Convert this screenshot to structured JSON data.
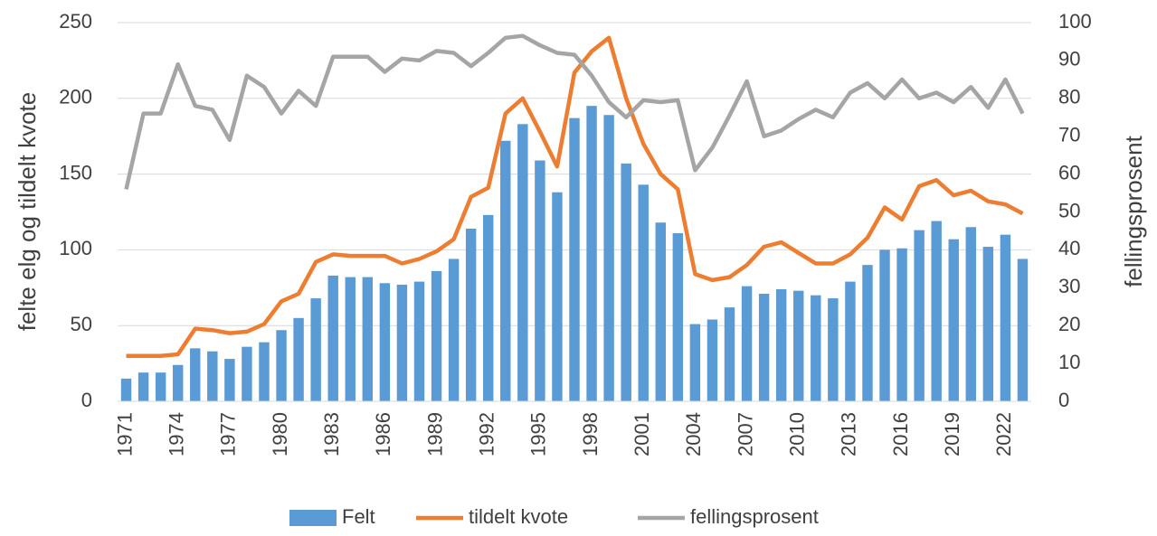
{
  "chart_data": {
    "type": "bar-line",
    "y_label": "felte elg og tildelt kvote",
    "y2_label": "fellingsprosent",
    "categories": [
      "1971",
      null,
      null,
      "1974",
      null,
      null,
      "1977",
      null,
      null,
      "1980",
      null,
      null,
      "1983",
      null,
      null,
      "1986",
      null,
      null,
      "1989",
      null,
      null,
      "1992",
      null,
      null,
      "1995",
      null,
      null,
      "1998",
      null,
      null,
      "2001",
      null,
      null,
      "2004",
      null,
      null,
      "2007",
      null,
      null,
      "2010",
      null,
      null,
      "2013",
      null,
      null,
      "2016",
      null,
      null,
      "2019",
      null,
      null,
      "2022",
      null
    ],
    "series": [
      {
        "name": "Felt",
        "type": "bar",
        "color": "#5b9bd5",
        "values": [
          15,
          19,
          19,
          24,
          35,
          33,
          28,
          36,
          39,
          47,
          55,
          68,
          83,
          82,
          82,
          78,
          77,
          79,
          86,
          94,
          114,
          123,
          172,
          183,
          159,
          138,
          187,
          195,
          189,
          157,
          143,
          118,
          111,
          51,
          54,
          62,
          76,
          71,
          74,
          73,
          70,
          68,
          79,
          90,
          100,
          101,
          113,
          119,
          107,
          115,
          102,
          110,
          94
        ]
      },
      {
        "name": "tildelt kvote",
        "type": "line",
        "color": "#ed7d31",
        "values": [
          30,
          30,
          30,
          31,
          48,
          47,
          45,
          46,
          51,
          66,
          71,
          92,
          97,
          96,
          96,
          96,
          91,
          94,
          99,
          107,
          135,
          141,
          190,
          200,
          178,
          155,
          217,
          231,
          240,
          200,
          170,
          150,
          140,
          84,
          80,
          82,
          90,
          102,
          105,
          98,
          91,
          91,
          97,
          108,
          128,
          120,
          142,
          146,
          136,
          139,
          132,
          130,
          124
        ]
      },
      {
        "name": "fellingsprosent",
        "type": "line",
        "axis": "y2",
        "color": "#a5a5a5",
        "values": [
          56,
          76,
          76,
          89,
          78,
          77,
          69,
          86,
          83,
          76,
          82,
          78,
          91,
          91,
          91,
          87,
          90.5,
          90,
          92.5,
          92,
          88.5,
          92,
          96,
          96.5,
          94,
          92,
          91.5,
          86,
          79,
          75,
          79.5,
          79,
          79.5,
          61,
          67,
          75.5,
          84.5,
          70,
          71.5,
          74.5,
          77,
          75,
          81.5,
          84,
          80,
          85,
          80,
          81.5,
          79,
          83,
          77.5,
          85,
          76
        ]
      }
    ],
    "ylim": [
      0,
      250
    ],
    "yticks": [
      0,
      50,
      100,
      150,
      200,
      250
    ],
    "y2lim": [
      0,
      100
    ],
    "y2ticks": [
      0,
      10,
      20,
      30,
      40,
      50,
      60,
      70,
      80,
      90,
      100
    ],
    "grid": true,
    "legend": "bottom"
  }
}
